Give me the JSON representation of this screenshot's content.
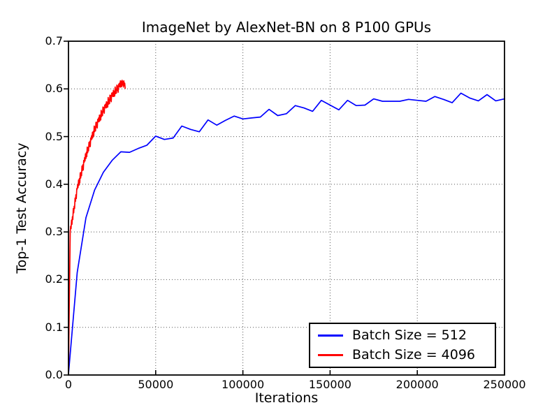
{
  "chart_data": {
    "type": "line",
    "title": "ImageNet by AlexNet-BN on 8 P100 GPUs",
    "xlabel": "Iterations",
    "ylabel": "Top-1 Test Accuracy",
    "xlim": [
      0,
      250000
    ],
    "ylim": [
      0,
      0.7
    ],
    "grid": true,
    "grid_style": "dotted",
    "legend_position": "lower right",
    "background_color": "#ffffff",
    "axis_color": "#000000",
    "grid_color": "#555555",
    "xticks": [
      {
        "v": 0,
        "label": "0"
      },
      {
        "v": 50000,
        "label": "50000"
      },
      {
        "v": 100000,
        "label": "100000"
      },
      {
        "v": 150000,
        "label": "150000"
      },
      {
        "v": 200000,
        "label": "200000"
      },
      {
        "v": 250000,
        "label": "250000"
      }
    ],
    "yticks": [
      {
        "v": 0.0,
        "label": "0.0"
      },
      {
        "v": 0.1,
        "label": "0.1"
      },
      {
        "v": 0.2,
        "label": "0.2"
      },
      {
        "v": 0.3,
        "label": "0.3"
      },
      {
        "v": 0.4,
        "label": "0.4"
      },
      {
        "v": 0.5,
        "label": "0.5"
      },
      {
        "v": 0.6,
        "label": "0.6"
      },
      {
        "v": 0.7,
        "label": "0.7"
      }
    ],
    "series": [
      {
        "name": "Batch Size = 512",
        "color": "#0000ff",
        "points": [
          [
            0,
            0.002
          ],
          [
            5000,
            0.215
          ],
          [
            10000,
            0.33
          ],
          [
            15000,
            0.388
          ],
          [
            20000,
            0.425
          ],
          [
            25000,
            0.45
          ],
          [
            30000,
            0.468
          ],
          [
            35000,
            0.467
          ],
          [
            40000,
            0.475
          ],
          [
            45000,
            0.482
          ],
          [
            50000,
            0.501
          ],
          [
            55000,
            0.494
          ],
          [
            60000,
            0.497
          ],
          [
            65000,
            0.522
          ],
          [
            70000,
            0.515
          ],
          [
            75000,
            0.51
          ],
          [
            80000,
            0.535
          ],
          [
            85000,
            0.524
          ],
          [
            90000,
            0.534
          ],
          [
            95000,
            0.543
          ],
          [
            100000,
            0.537
          ],
          [
            105000,
            0.539
          ],
          [
            110000,
            0.541
          ],
          [
            115000,
            0.557
          ],
          [
            120000,
            0.544
          ],
          [
            125000,
            0.548
          ],
          [
            130000,
            0.565
          ],
          [
            135000,
            0.56
          ],
          [
            140000,
            0.553
          ],
          [
            145000,
            0.576
          ],
          [
            150000,
            0.566
          ],
          [
            155000,
            0.556
          ],
          [
            160000,
            0.576
          ],
          [
            165000,
            0.565
          ],
          [
            170000,
            0.566
          ],
          [
            175000,
            0.579
          ],
          [
            180000,
            0.574
          ],
          [
            185000,
            0.574
          ],
          [
            190000,
            0.574
          ],
          [
            195000,
            0.578
          ],
          [
            200000,
            0.576
          ],
          [
            205000,
            0.574
          ],
          [
            210000,
            0.584
          ],
          [
            215000,
            0.578
          ],
          [
            220000,
            0.571
          ],
          [
            225000,
            0.591
          ],
          [
            230000,
            0.581
          ],
          [
            235000,
            0.575
          ],
          [
            240000,
            0.588
          ],
          [
            245000,
            0.575
          ],
          [
            250000,
            0.579
          ]
        ]
      },
      {
        "name": "Batch Size = 4096",
        "color": "#ff0000",
        "points": [
          [
            0,
            0.001
          ],
          [
            250,
            0.076
          ],
          [
            500,
            0.152
          ],
          [
            750,
            0.228
          ],
          [
            1000,
            0.3
          ],
          [
            1250,
            0.312
          ],
          [
            1500,
            0.307
          ],
          [
            1750,
            0.325
          ],
          [
            2000,
            0.316
          ],
          [
            2250,
            0.332
          ],
          [
            2500,
            0.326
          ],
          [
            2750,
            0.349
          ],
          [
            3000,
            0.34
          ],
          [
            3250,
            0.354
          ],
          [
            3500,
            0.349
          ],
          [
            3750,
            0.371
          ],
          [
            4000,
            0.364
          ],
          [
            4250,
            0.378
          ],
          [
            4500,
            0.37
          ],
          [
            4750,
            0.391
          ],
          [
            5000,
            0.39
          ],
          [
            5250,
            0.399
          ],
          [
            5500,
            0.393
          ],
          [
            5750,
            0.409
          ],
          [
            6000,
            0.398
          ],
          [
            6250,
            0.412
          ],
          [
            6500,
            0.403
          ],
          [
            6750,
            0.424
          ],
          [
            7000,
            0.413
          ],
          [
            7250,
            0.425
          ],
          [
            7500,
            0.418
          ],
          [
            7750,
            0.438
          ],
          [
            8000,
            0.429
          ],
          [
            8250,
            0.441
          ],
          [
            8500,
            0.43
          ],
          [
            8750,
            0.45
          ],
          [
            9000,
            0.446
          ],
          [
            9250,
            0.456
          ],
          [
            9500,
            0.449
          ],
          [
            9750,
            0.464
          ],
          [
            10000,
            0.454
          ],
          [
            10250,
            0.467
          ],
          [
            10500,
            0.458
          ],
          [
            10750,
            0.478
          ],
          [
            11000,
            0.466
          ],
          [
            11250,
            0.477
          ],
          [
            11500,
            0.47
          ],
          [
            11750,
            0.488
          ],
          [
            12000,
            0.479
          ],
          [
            12250,
            0.49
          ],
          [
            12500,
            0.479
          ],
          [
            12750,
            0.497
          ],
          [
            13000,
            0.493
          ],
          [
            13250,
            0.502
          ],
          [
            13500,
            0.495
          ],
          [
            13750,
            0.509
          ],
          [
            14000,
            0.498
          ],
          [
            14250,
            0.511
          ],
          [
            14500,
            0.502
          ],
          [
            14750,
            0.522
          ],
          [
            15000,
            0.51
          ],
          [
            15250,
            0.52
          ],
          [
            15500,
            0.512
          ],
          [
            15750,
            0.53
          ],
          [
            16000,
            0.52
          ],
          [
            16250,
            0.53
          ],
          [
            16500,
            0.518
          ],
          [
            16750,
            0.536
          ],
          [
            17000,
            0.531
          ],
          [
            17250,
            0.539
          ],
          [
            17500,
            0.531
          ],
          [
            17750,
            0.545
          ],
          [
            18000,
            0.533
          ],
          [
            18250,
            0.545
          ],
          [
            18500,
            0.535
          ],
          [
            18750,
            0.555
          ],
          [
            19000,
            0.542
          ],
          [
            19250,
            0.552
          ],
          [
            19500,
            0.544
          ],
          [
            19750,
            0.562
          ],
          [
            20000,
            0.552
          ],
          [
            20250,
            0.561
          ],
          [
            20500,
            0.549
          ],
          [
            20750,
            0.566
          ],
          [
            21000,
            0.561
          ],
          [
            21250,
            0.568
          ],
          [
            21500,
            0.56
          ],
          [
            21750,
            0.573
          ],
          [
            22000,
            0.561
          ],
          [
            22250,
            0.572
          ],
          [
            22500,
            0.562
          ],
          [
            22750,
            0.582
          ],
          [
            23000,
            0.568
          ],
          [
            23250,
            0.578
          ],
          [
            23500,
            0.569
          ],
          [
            23750,
            0.587
          ],
          [
            24000,
            0.576
          ],
          [
            24250,
            0.586
          ],
          [
            24500,
            0.573
          ],
          [
            24750,
            0.591
          ],
          [
            25000,
            0.585
          ],
          [
            25250,
            0.592
          ],
          [
            25500,
            0.584
          ],
          [
            25750,
            0.597
          ],
          [
            26000,
            0.584
          ],
          [
            26250,
            0.595
          ],
          [
            26500,
            0.585
          ],
          [
            26750,
            0.604
          ],
          [
            27000,
            0.59
          ],
          [
            27250,
            0.599
          ],
          [
            27500,
            0.591
          ],
          [
            27750,
            0.608
          ],
          [
            28000,
            0.597
          ],
          [
            28250,
            0.606
          ],
          [
            28500,
            0.593
          ],
          [
            28750,
            0.61
          ],
          [
            29000,
            0.605
          ],
          [
            29250,
            0.612
          ],
          [
            29500,
            0.604
          ],
          [
            29750,
            0.617
          ],
          [
            30000,
            0.604
          ],
          [
            30250,
            0.616
          ],
          [
            30500,
            0.605
          ],
          [
            30750,
            0.618
          ],
          [
            31000,
            0.608
          ],
          [
            31250,
            0.615
          ],
          [
            31500,
            0.604
          ],
          [
            31750,
            0.617
          ],
          [
            32000,
            0.607
          ],
          [
            32250,
            0.612
          ],
          [
            32500,
            0.601
          ]
        ]
      }
    ]
  }
}
